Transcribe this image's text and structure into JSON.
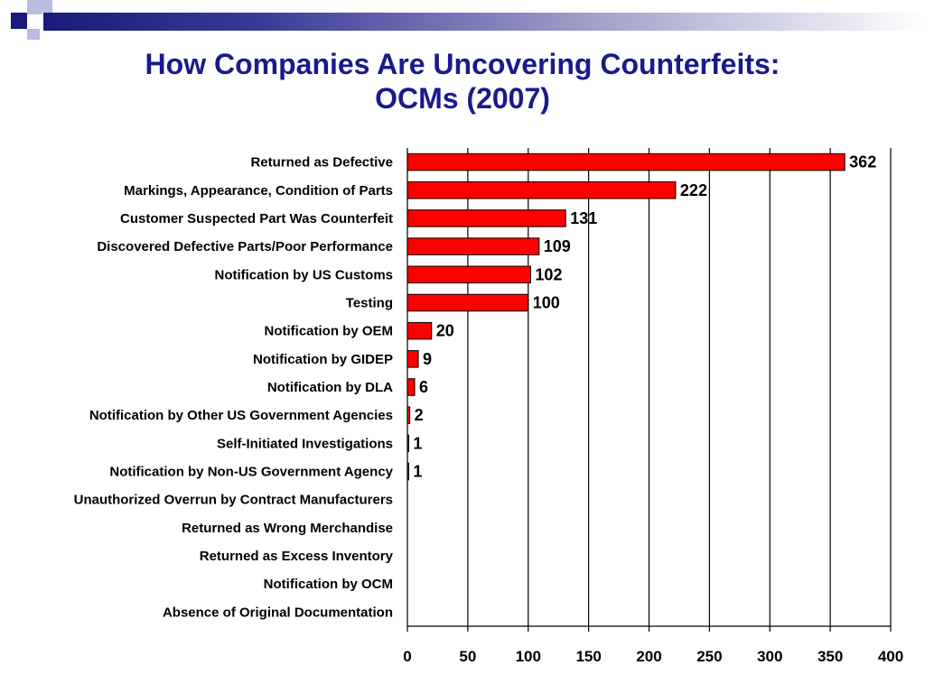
{
  "header": {
    "title_line1": "How Companies Are Uncovering Counterfeits:",
    "title_line2": "OCMs (2007)"
  },
  "colors": {
    "bar_fill": "#ff0000",
    "bar_stroke": "#000000",
    "title": "#1a1a8c",
    "banner_dark": "#1a1a7a",
    "banner_light": "#b9bde0"
  },
  "chart_data": {
    "type": "bar",
    "orientation": "horizontal",
    "title": "How Companies Are Uncovering Counterfeits: OCMs (2007)",
    "categories": [
      "Returned as Defective",
      "Markings, Appearance, Condition of Parts",
      "Customer Suspected Part Was Counterfeit",
      "Discovered Defective Parts/Poor Performance",
      "Notification by US Customs",
      "Testing",
      "Notification by OEM",
      "Notification by GIDEP",
      "Notification by DLA",
      "Notification by Other US Government Agencies",
      "Self-Initiated Investigations",
      "Notification by Non-US Government Agency",
      "Unauthorized Overrun by Contract Manufacturers",
      "Returned as Wrong Merchandise",
      "Returned as Excess Inventory",
      "Notification by OCM",
      "Absence of Original Documentation"
    ],
    "values": [
      362,
      222,
      131,
      109,
      102,
      100,
      20,
      9,
      6,
      2,
      1,
      1,
      0,
      0,
      0,
      0,
      0
    ],
    "data_labels": [
      "362",
      "222",
      "131",
      "109",
      "102",
      "100",
      "20",
      "9",
      "6",
      "2",
      "1",
      "1",
      "",
      "",
      "",
      "",
      ""
    ],
    "xlim": [
      0,
      400
    ],
    "xticks": [
      0,
      50,
      100,
      150,
      200,
      250,
      300,
      350,
      400
    ],
    "xtick_labels": [
      "0",
      "50",
      "100",
      "150",
      "200",
      "250",
      "300",
      "350",
      "400"
    ],
    "grid": "vertical",
    "legend": "none"
  }
}
